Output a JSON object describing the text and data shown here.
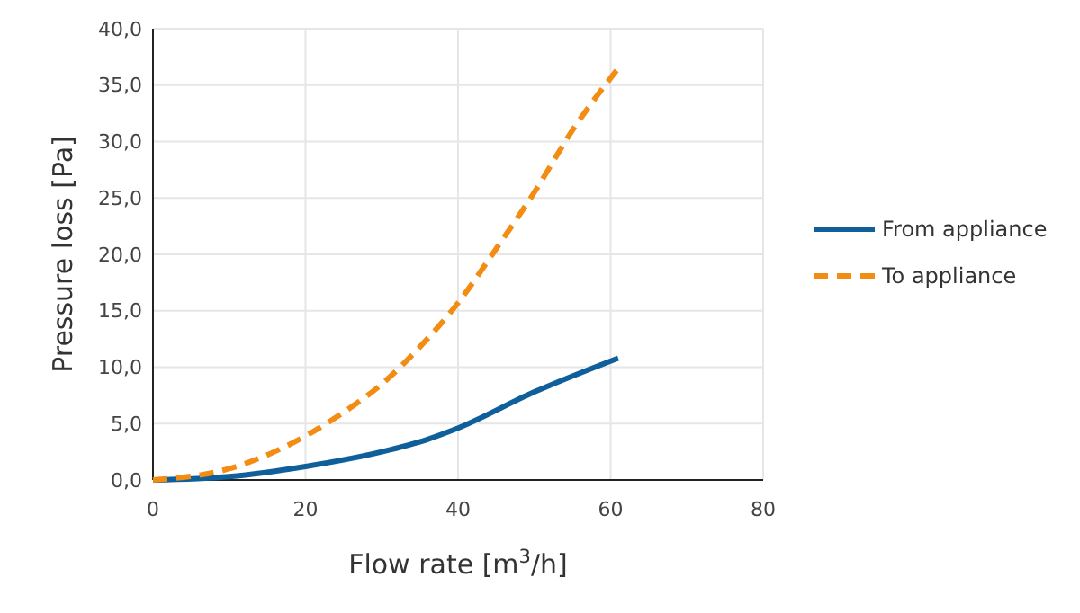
{
  "chart_data": {
    "type": "line",
    "xlabel": "Flow rate [m$^{3}$/h]",
    "ylabel": "Pressure loss [Pa]",
    "xlim": [
      0,
      80
    ],
    "xticks": [
      0,
      20,
      40,
      60,
      80
    ],
    "ylim": [
      0,
      40
    ],
    "yticks": [
      {
        "value": 0,
        "label": "0,0"
      },
      {
        "value": 5,
        "label": "5,0"
      },
      {
        "value": 10,
        "label": "10,0"
      },
      {
        "value": 15,
        "label": "15,0"
      },
      {
        "value": 20,
        "label": "20,0"
      },
      {
        "value": 25,
        "label": "25,0"
      },
      {
        "value": 30,
        "label": "30,0"
      },
      {
        "value": 35,
        "label": "35,0"
      },
      {
        "value": 40,
        "label": "40,0"
      }
    ],
    "grid": true,
    "legend": "right",
    "marker": "none",
    "series": [
      {
        "name": "From appliance",
        "color": "#0f5f9a",
        "line_style": "solid",
        "x": [
          0,
          10,
          20,
          30,
          36,
          40,
          50,
          61
        ],
        "values": [
          0,
          0.3,
          1.2,
          2.5,
          3.6,
          4.6,
          7.8,
          10.8
        ]
      },
      {
        "name": "To appliance",
        "color": "#f28c12",
        "line_style": "dashed",
        "x": [
          0,
          10,
          20,
          25,
          30,
          35,
          40,
          45,
          50,
          55,
          61
        ],
        "values": [
          0,
          1.0,
          3.9,
          6.0,
          8.5,
          11.8,
          15.7,
          20.5,
          25.5,
          31,
          36.5
        ]
      }
    ]
  }
}
